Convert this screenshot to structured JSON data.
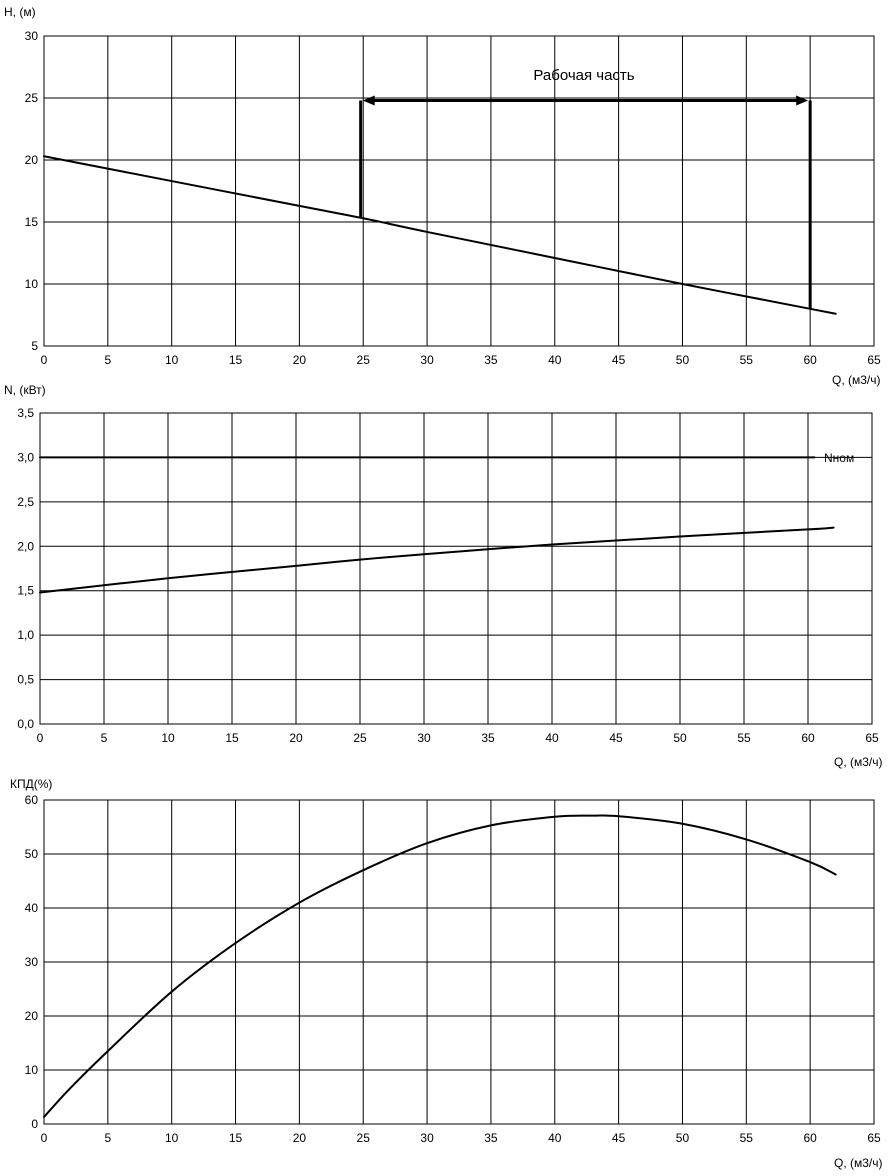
{
  "chart_data": [
    {
      "type": "line",
      "title": "",
      "ylabel": "H, (м)",
      "xlabel": "Q, (м3/ч)",
      "xlim": [
        0,
        65
      ],
      "ylim": [
        5,
        30
      ],
      "x_ticks": [
        0,
        5,
        10,
        15,
        20,
        25,
        30,
        35,
        40,
        45,
        50,
        55,
        60,
        65
      ],
      "y_ticks": [
        5,
        10,
        15,
        20,
        25,
        30
      ],
      "x_tick_labels": [
        "0",
        "5",
        "10",
        "15",
        "20",
        "25",
        "30",
        "35",
        "40",
        "45",
        "50",
        "55",
        "60",
        "65"
      ],
      "y_tick_labels": [
        "5",
        "10",
        "15",
        "20",
        "25",
        "30"
      ],
      "grid": true,
      "series": [
        {
          "x": [
            0,
            10,
            20,
            25,
            30,
            40,
            50,
            60,
            62
          ],
          "y": [
            20.3,
            18.3,
            16.3,
            15.3,
            14.2,
            12.1,
            10.0,
            8.0,
            7.6
          ]
        }
      ],
      "annotations": [
        {
          "text": "Рабочая часть",
          "x": 39,
          "y": 27
        },
        {
          "type": "vline",
          "x": 24.8,
          "y0": 15.3,
          "y1": 24.8
        },
        {
          "type": "vline",
          "x": 60,
          "y0": 8.0,
          "y1": 24.8
        },
        {
          "type": "double-arrow",
          "x0": 24.8,
          "x1": 60,
          "y": 24.8
        }
      ]
    },
    {
      "type": "line",
      "title": "",
      "ylabel": "N, (кВт)",
      "xlabel": "Q, (м3/ч)",
      "xlim": [
        0,
        65
      ],
      "ylim": [
        0,
        3.5
      ],
      "x_ticks": [
        0,
        5,
        10,
        15,
        20,
        25,
        30,
        35,
        40,
        45,
        50,
        55,
        60,
        65
      ],
      "y_ticks": [
        0,
        0.5,
        1.0,
        1.5,
        2.0,
        2.5,
        3.0,
        3.5
      ],
      "x_tick_labels": [
        "0",
        "5",
        "10",
        "15",
        "20",
        "25",
        "30",
        "35",
        "40",
        "45",
        "50",
        "55",
        "60",
        "65"
      ],
      "y_tick_labels": [
        "0,0",
        "0,5",
        "1,0",
        "1,5",
        "2,0",
        "2,5",
        "3,0",
        "3,5"
      ],
      "grid": true,
      "series": [
        {
          "x": [
            0,
            10,
            20,
            25,
            30,
            40,
            50,
            60,
            62
          ],
          "y": [
            1.48,
            1.64,
            1.78,
            1.85,
            1.91,
            2.02,
            2.11,
            2.19,
            2.21
          ]
        },
        {
          "x": [
            0,
            60.5
          ],
          "y": [
            3.0,
            3.0
          ],
          "label": "Nном"
        }
      ]
    },
    {
      "type": "line",
      "title": "",
      "ylabel": "КПД(%)",
      "xlabel": "Q, (м3/ч)",
      "xlim": [
        0,
        65
      ],
      "ylim": [
        0,
        60
      ],
      "x_ticks": [
        0,
        5,
        10,
        15,
        20,
        25,
        30,
        35,
        40,
        45,
        50,
        55,
        60,
        65
      ],
      "y_ticks": [
        0,
        10,
        20,
        30,
        40,
        50,
        60
      ],
      "x_tick_labels": [
        "0",
        "5",
        "10",
        "15",
        "20",
        "25",
        "30",
        "35",
        "40",
        "45",
        "50",
        "55",
        "60",
        "65"
      ],
      "y_tick_labels": [
        "0",
        "10",
        "20",
        "30",
        "40",
        "50",
        "60"
      ],
      "grid": true,
      "series": [
        {
          "x": [
            0,
            2,
            5,
            10,
            15,
            20,
            25,
            30,
            35,
            40,
            43,
            45,
            50,
            55,
            60,
            62
          ],
          "y": [
            1.3,
            6.5,
            13.5,
            24.5,
            33.5,
            41.0,
            47.0,
            52.0,
            55.3,
            56.9,
            57.1,
            57.0,
            55.6,
            52.7,
            48.5,
            46.2
          ]
        }
      ]
    }
  ]
}
